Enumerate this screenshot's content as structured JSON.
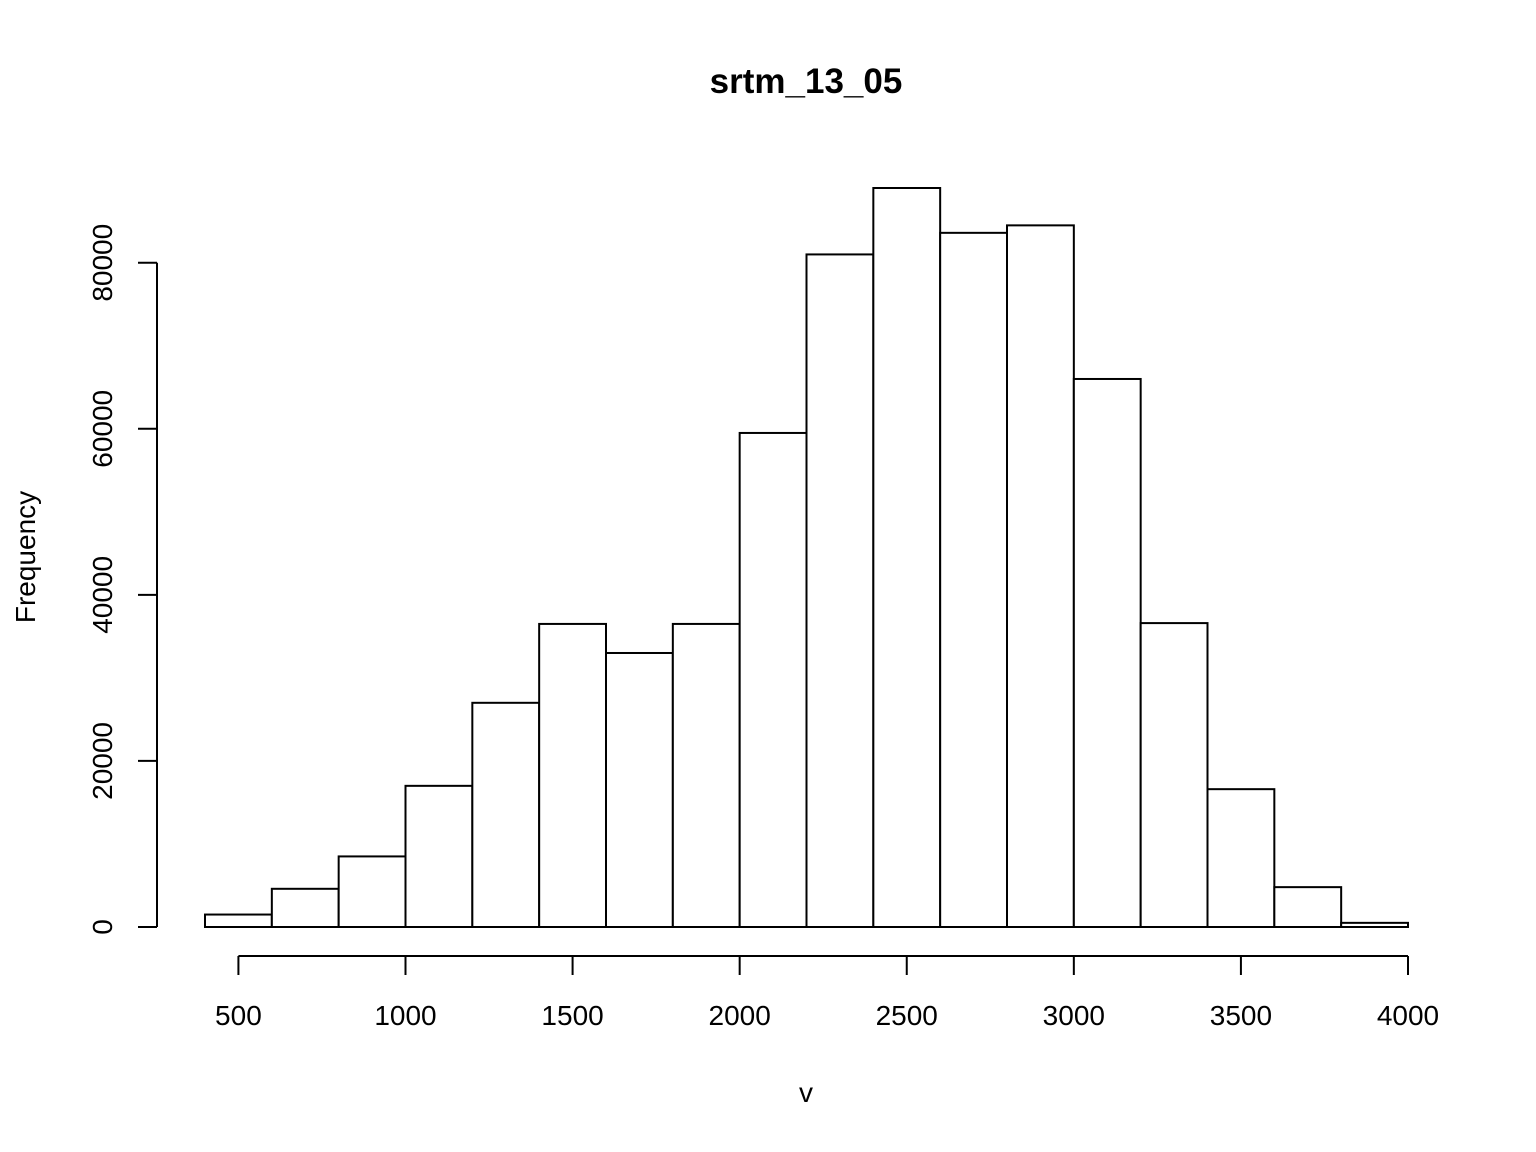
{
  "chart_data": {
    "type": "bar",
    "title": "srtm_13_05",
    "xlabel": "v",
    "ylabel": "Frequency",
    "bins": [
      {
        "start": 400,
        "end": 600,
        "value": 1500
      },
      {
        "start": 600,
        "end": 800,
        "value": 4600
      },
      {
        "start": 800,
        "end": 1000,
        "value": 8500
      },
      {
        "start": 1000,
        "end": 1200,
        "value": 17000
      },
      {
        "start": 1200,
        "end": 1400,
        "value": 27000
      },
      {
        "start": 1400,
        "end": 1600,
        "value": 36500
      },
      {
        "start": 1600,
        "end": 1800,
        "value": 33000
      },
      {
        "start": 1800,
        "end": 2000,
        "value": 36500
      },
      {
        "start": 2000,
        "end": 2200,
        "value": 59500
      },
      {
        "start": 2200,
        "end": 2400,
        "value": 81000
      },
      {
        "start": 2400,
        "end": 2600,
        "value": 89000
      },
      {
        "start": 2600,
        "end": 2800,
        "value": 83600
      },
      {
        "start": 2800,
        "end": 3000,
        "value": 84500
      },
      {
        "start": 3000,
        "end": 3200,
        "value": 66000
      },
      {
        "start": 3200,
        "end": 3400,
        "value": 36600
      },
      {
        "start": 3400,
        "end": 3600,
        "value": 16600
      },
      {
        "start": 3600,
        "end": 3800,
        "value": 4800
      },
      {
        "start": 3800,
        "end": 4000,
        "value": 500
      }
    ],
    "x_ticks": [
      500,
      1000,
      1500,
      2000,
      2500,
      3000,
      3500,
      4000
    ],
    "x_tick_labels": [
      "500",
      "1000",
      "1500",
      "2000",
      "2500",
      "3000",
      "3500",
      "4000"
    ],
    "y_ticks": [
      0,
      20000,
      40000,
      60000,
      80000
    ],
    "y_tick_labels": [
      "0",
      "20000",
      "40000",
      "60000",
      "80000"
    ],
    "xlim": [
      400,
      4000
    ],
    "ylim": [
      0,
      89000
    ],
    "grid": false,
    "legend": "none",
    "colors": {
      "background": "#ffffff",
      "bar_fill": "#ffffff",
      "stroke": "#000000"
    }
  }
}
